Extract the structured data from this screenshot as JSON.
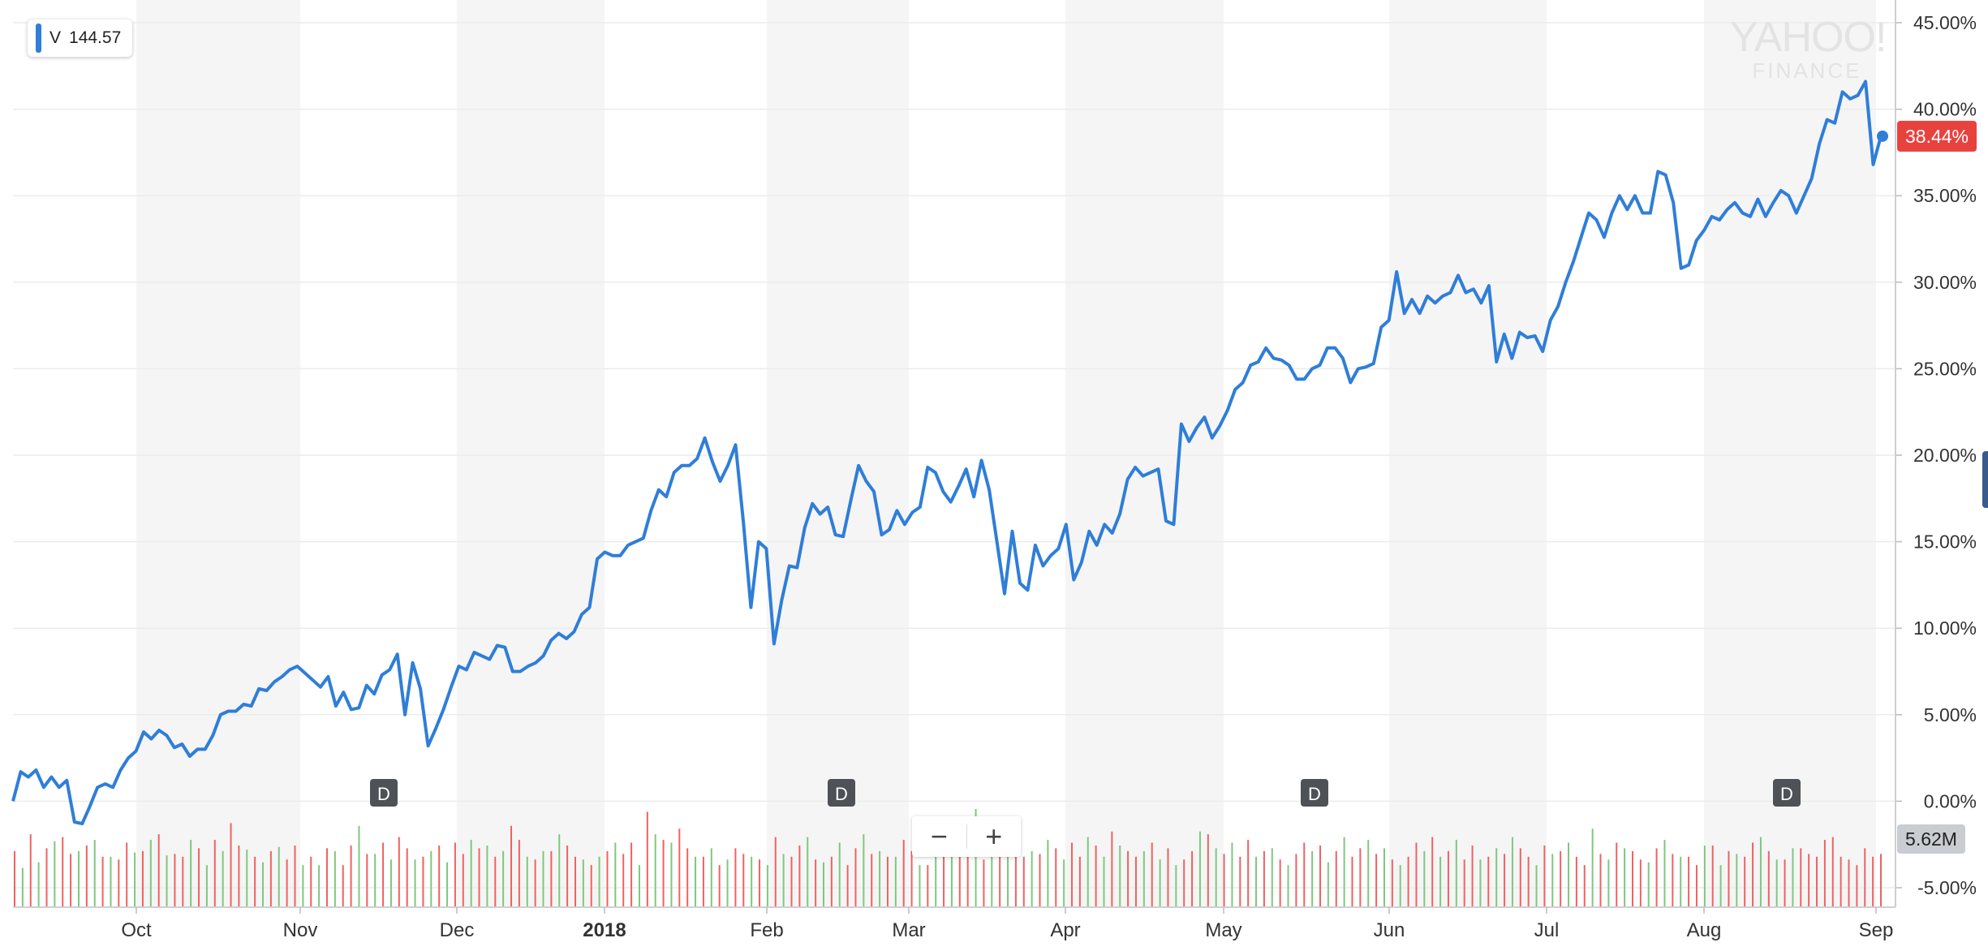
{
  "legend": {
    "symbol": "V",
    "price": "144.57"
  },
  "watermark": {
    "line1": "YAHOO!",
    "line2": "FINANCE"
  },
  "zoom": {
    "minus": "−",
    "plus": "+"
  },
  "colors": {
    "line": "#2f7ed8",
    "volume_up": "#7fc77f",
    "volume_down": "#ef6262",
    "band": "#f5f5f5",
    "badge_price": "#e8423f",
    "badge_volume": "#c9ccd0",
    "event": "#4e5257"
  },
  "badges": {
    "last_change": "38.44%",
    "last_volume": "5.62M"
  },
  "events": [
    {
      "label": "D",
      "date": "Nov 16"
    },
    {
      "label": "D",
      "date": "Feb 9"
    },
    {
      "label": "D",
      "date": "May 17"
    },
    {
      "label": "D",
      "date": "Aug 9"
    }
  ],
  "chart_data": {
    "type": "line",
    "title": "",
    "xlabel": "",
    "ylabel": "",
    "x_range": [
      "Sep 2017",
      "Sep 2018"
    ],
    "ylim": [
      -5,
      45
    ],
    "y_unit": "%",
    "y_ticks": [
      "45.00%",
      "40.00%",
      "35.00%",
      "30.00%",
      "25.00%",
      "20.00%",
      "15.00%",
      "10.00%",
      "5.00%",
      "0.00%",
      "-5.00%"
    ],
    "x_ticks": [
      "Oct",
      "Nov",
      "Dec",
      "2018",
      "Feb",
      "Mar",
      "Apr",
      "May",
      "Jun",
      "Jul",
      "Aug",
      "Sep"
    ],
    "grid": true,
    "alternating_month_bands": true,
    "series": [
      {
        "name": "V",
        "values": [
          0.0,
          1.7,
          1.4,
          1.8,
          0.8,
          1.4,
          0.8,
          1.2,
          -1.2,
          -1.3,
          -0.3,
          0.8,
          1.0,
          0.8,
          1.8,
          2.5,
          2.9,
          4.0,
          3.6,
          4.1,
          3.8,
          3.1,
          3.3,
          2.6,
          3.0,
          3.0,
          3.8,
          5.0,
          5.2,
          5.2,
          5.6,
          5.5,
          6.5,
          6.4,
          6.9,
          7.2,
          7.6,
          7.8,
          7.4,
          7.0,
          6.6,
          7.2,
          5.5,
          6.3,
          5.3,
          5.4,
          6.7,
          6.2,
          7.3,
          7.6,
          8.5,
          5.0,
          8.0,
          6.5,
          3.2,
          4.2,
          5.3,
          6.6,
          7.8,
          7.6,
          8.6,
          8.4,
          8.2,
          9.0,
          8.9,
          7.5,
          7.5,
          7.8,
          8.0,
          8.4,
          9.3,
          9.7,
          9.4,
          9.8,
          10.8,
          11.2,
          14.0,
          14.4,
          14.2,
          14.2,
          14.8,
          15.0,
          15.2,
          16.8,
          18.0,
          17.6,
          19.0,
          19.4,
          19.4,
          19.8,
          21.0,
          19.6,
          18.5,
          19.4,
          20.6,
          16.2,
          11.2,
          15.0,
          14.6,
          9.1,
          11.6,
          13.6,
          13.5,
          15.8,
          17.2,
          16.6,
          17.0,
          15.4,
          15.3,
          17.4,
          19.4,
          18.5,
          17.9,
          15.4,
          15.7,
          16.8,
          16.0,
          16.7,
          17.0,
          19.3,
          19.0,
          17.9,
          17.3,
          18.2,
          19.2,
          17.6,
          19.7,
          18.0,
          15.0,
          12.0,
          15.6,
          12.6,
          12.2,
          14.8,
          13.6,
          14.2,
          14.6,
          16.0,
          12.8,
          13.8,
          15.6,
          14.8,
          16.0,
          15.5,
          16.6,
          18.6,
          19.3,
          18.8,
          19.0,
          19.2,
          16.2,
          16.0,
          21.8,
          20.8,
          21.6,
          22.2,
          21.0,
          21.7,
          22.6,
          23.8,
          24.2,
          25.2,
          25.4,
          26.2,
          25.6,
          25.5,
          25.2,
          24.4,
          24.4,
          25.0,
          25.2,
          26.2,
          26.2,
          25.6,
          24.2,
          25.0,
          25.1,
          25.3,
          27.4,
          27.8,
          30.6,
          28.2,
          29.0,
          28.2,
          29.2,
          28.8,
          29.2,
          29.4,
          30.4,
          29.4,
          29.6,
          28.8,
          29.8,
          25.4,
          27.0,
          25.6,
          27.1,
          26.8,
          26.9,
          26.0,
          27.8,
          28.6,
          30.0,
          31.2,
          32.6,
          34.0,
          33.6,
          32.6,
          34.0,
          35.0,
          34.2,
          35.0,
          34.0,
          34.0,
          36.4,
          36.2,
          34.6,
          30.8,
          31.0,
          32.4,
          33.0,
          33.8,
          33.6,
          34.2,
          34.6,
          34.0,
          33.8,
          34.8,
          33.8,
          34.6,
          35.3,
          35.0,
          34.0,
          35.0,
          36.0,
          38.0,
          39.4,
          39.2,
          41.0,
          40.6,
          40.8,
          41.6,
          36.8,
          38.44
        ]
      }
    ],
    "volume": {
      "up_heights": [
        0.28,
        0.32,
        0.47,
        0.4,
        0.48,
        0.36,
        0.39,
        0.48,
        0.37,
        0.48,
        0.3,
        0.4,
        0.41,
        0.32,
        0.43,
        0.3,
        0.3,
        0.4,
        0.58,
        0.38,
        0.34,
        0.34,
        0.4,
        0.32,
        0.48,
        0.44,
        0.4,
        0.36,
        0.4,
        0.52,
        0.34,
        0.36,
        0.46,
        0.3,
        0.52,
        0.46,
        0.36,
        0.42,
        0.34,
        0.36,
        0.3,
        0.38,
        0.5,
        0.32,
        0.46,
        0.52,
        0.4,
        0.36,
        0.3,
        0.46,
        0.5,
        0.7,
        0.44,
        0.6,
        0.4,
        0.48,
        0.34,
        0.5,
        0.36,
        0.44,
        0.4,
        0.34,
        0.3,
        0.54,
        0.42,
        0.46,
        0.36,
        0.42,
        0.3,
        0.4,
        0.32,
        0.5,
        0.48,
        0.42,
        0.3,
        0.4,
        0.36,
        0.48,
        0.34,
        0.42,
        0.5,
        0.3,
        0.38,
        0.46,
        0.56,
        0.34,
        0.42,
        0.32,
        0.48,
        0.36,
        0.44,
        0.3,
        0.38,
        0.5,
        0.34,
        0.42
      ],
      "down_heights": [
        0.4,
        0.52,
        0.42,
        0.5,
        0.38,
        0.44,
        0.36,
        0.34,
        0.46,
        0.4,
        0.52,
        0.38,
        0.36,
        0.42,
        0.48,
        0.6,
        0.44,
        0.36,
        0.4,
        0.34,
        0.44,
        0.36,
        0.42,
        0.3,
        0.44,
        0.38,
        0.46,
        0.5,
        0.42,
        0.36,
        0.44,
        0.46,
        0.38,
        0.42,
        0.36,
        0.58,
        0.48,
        0.34,
        0.4,
        0.44,
        0.36,
        0.3,
        0.4,
        0.38,
        0.46,
        0.68,
        0.48,
        0.56,
        0.42,
        0.36,
        0.3,
        0.42,
        0.38,
        0.34,
        0.5,
        0.36,
        0.44,
        0.34,
        0.36,
        0.3,
        0.42,
        0.38,
        0.36,
        0.48,
        0.4,
        0.3,
        0.38,
        0.44,
        0.5,
        0.34,
        0.4,
        0.44,
        0.36,
        0.38,
        0.42,
        0.46,
        0.36,
        0.44,
        0.54,
        0.4,
        0.36,
        0.46,
        0.42,
        0.34,
        0.4,
        0.52,
        0.38,
        0.36,
        0.48,
        0.4,
        0.34,
        0.38,
        0.46,
        0.44,
        0.4,
        0.36,
        0.42,
        0.38,
        0.34,
        0.36,
        0.46,
        0.5,
        0.4,
        0.34,
        0.44,
        0.36,
        0.38,
        0.42,
        0.36,
        0.44,
        0.4,
        0.36,
        0.3,
        0.38,
        0.46,
        0.4,
        0.34,
        0.42,
        0.38,
        0.36,
        0.3,
        0.44,
        0.4,
        0.36,
        0.46,
        0.4,
        0.34,
        0.42,
        0.38,
        0.36,
        0.48,
        0.5,
        0.36,
        0.34,
        0.3,
        0.42,
        0.36,
        0.38
      ]
    }
  }
}
